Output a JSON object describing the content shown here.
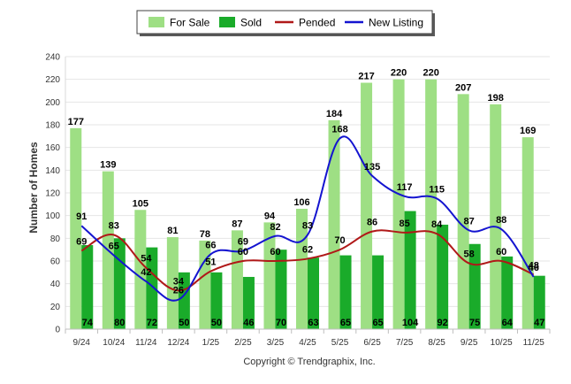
{
  "chart_data": {
    "type": "bar",
    "title": "",
    "xlabel": "",
    "ylabel": "Number of Homes",
    "ylim": [
      0,
      240
    ],
    "yticks": [
      0,
      20,
      40,
      60,
      80,
      100,
      120,
      140,
      160,
      180,
      200,
      220,
      240
    ],
    "grid": true,
    "legend_position": "top-center",
    "categories": [
      "9/24",
      "10/24",
      "11/24",
      "12/24",
      "1/25",
      "2/25",
      "3/25",
      "4/25",
      "5/25",
      "6/25",
      "7/25",
      "8/25",
      "9/25",
      "10/25",
      "11/25"
    ],
    "series": [
      {
        "name": "For Sale",
        "kind": "bar",
        "color": "#9edf84",
        "values": [
          177,
          139,
          105,
          81,
          78,
          87,
          94,
          106,
          184,
          217,
          220,
          220,
          207,
          198,
          169
        ]
      },
      {
        "name": "Sold",
        "kind": "bar",
        "color": "#1aab2a",
        "values": [
          74,
          80,
          72,
          50,
          50,
          46,
          70,
          63,
          65,
          65,
          104,
          92,
          75,
          64,
          47
        ]
      },
      {
        "name": "Pended",
        "kind": "line",
        "color": "#b01818",
        "values": [
          69,
          83,
          54,
          34,
          51,
          60,
          60,
          62,
          70,
          86,
          85,
          84,
          58,
          60,
          48
        ]
      },
      {
        "name": "New Listing",
        "kind": "line",
        "color": "#1414d0",
        "values": [
          91,
          65,
          42,
          26,
          66,
          69,
          82,
          83,
          168,
          135,
          117,
          115,
          87,
          88,
          46
        ]
      }
    ]
  },
  "footer": {
    "copyright": "Copyright © Trendgraphix, Inc."
  }
}
